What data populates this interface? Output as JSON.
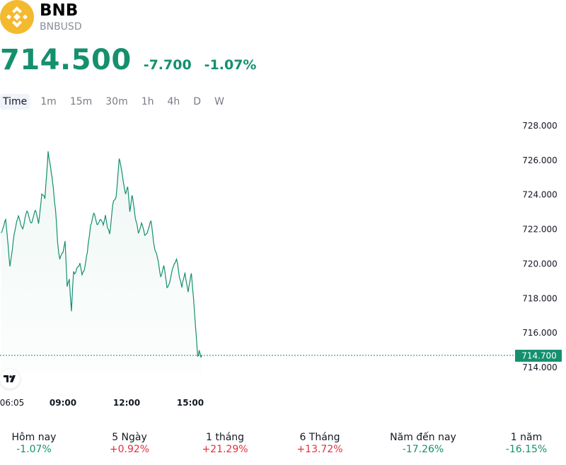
{
  "header": {
    "logo_icon": "bnb-logo-icon",
    "symbol": "BNB",
    "pair": "BNBUSD",
    "price": "714.500",
    "change": "-7.700",
    "change_pct": "-1.07%",
    "change_color": "#14906e"
  },
  "tabs": [
    "Time",
    "1m",
    "15m",
    "30m",
    "1h",
    "4h",
    "D",
    "W"
  ],
  "active_tab": "Time",
  "chart_data": {
    "type": "area",
    "y_ticks": [
      "728.000",
      "726.000",
      "724.000",
      "722.000",
      "720.000",
      "718.000",
      "716.000",
      "714.000"
    ],
    "ylim": [
      714,
      728
    ],
    "x_ticks": [
      "06:05",
      "09:00",
      "12:00",
      "15:00"
    ],
    "last_price_label": "714.700",
    "last_value": 714.7,
    "line_color": "#14906e",
    "x_hours": [
      6.08,
      6.3,
      6.5,
      6.7,
      6.9,
      7.1,
      7.3,
      7.5,
      7.7,
      7.85,
      8.0,
      8.15,
      8.3,
      8.45,
      8.55,
      8.65,
      8.75,
      8.85,
      9.0,
      9.1,
      9.2,
      9.3,
      9.4,
      9.5,
      9.6,
      9.7,
      9.8,
      9.9,
      10.0,
      10.15,
      10.3,
      10.45,
      10.6,
      10.75,
      10.9,
      11.0,
      11.1,
      11.2,
      11.35,
      11.5,
      11.65,
      11.8,
      11.95,
      12.05,
      12.15,
      12.25,
      12.35,
      12.45,
      12.55,
      12.7,
      12.85,
      13.0,
      13.15,
      13.3,
      13.45,
      13.6,
      13.75,
      13.9,
      14.05,
      14.15,
      14.25,
      14.35,
      14.45,
      14.6,
      14.75,
      14.9,
      15.05,
      15.15,
      15.25,
      15.35,
      15.42,
      15.5,
      15.55
    ],
    "values": [
      721.8,
      722.6,
      719.8,
      721.8,
      722.7,
      722.1,
      723.0,
      722.4,
      723.1,
      722.3,
      724.1,
      723.7,
      726.6,
      725.2,
      724.4,
      723.1,
      721.2,
      720.3,
      720.6,
      721.4,
      718.6,
      719.2,
      717.2,
      719.6,
      719.5,
      719.8,
      720.1,
      719.3,
      719.7,
      720.6,
      722.3,
      722.9,
      722.3,
      722.6,
      722.2,
      722.9,
      722.0,
      721.8,
      723.4,
      723.9,
      726.1,
      725.1,
      724.1,
      724.4,
      723.1,
      723.9,
      723.3,
      722.4,
      721.8,
      722.4,
      721.6,
      722.0,
      722.4,
      721.1,
      720.3,
      719.3,
      719.9,
      718.6,
      719.1,
      719.6,
      720.1,
      720.2,
      719.6,
      718.6,
      719.5,
      718.4,
      719.4,
      718.1,
      716.2,
      714.7,
      715.0,
      714.6,
      714.7
    ]
  },
  "periods": [
    {
      "label": "Hôm nay",
      "value": "-1.07%",
      "trend": "neg"
    },
    {
      "label": "5 Ngày",
      "value": "+0.92%",
      "trend": "pos"
    },
    {
      "label": "1 tháng",
      "value": "+21.29%",
      "trend": "pos"
    },
    {
      "label": "6 Tháng",
      "value": "+13.72%",
      "trend": "pos"
    },
    {
      "label": "Năm đến nay",
      "value": "-17.26%",
      "trend": "neg"
    },
    {
      "label": "1 năm",
      "value": "-16.15%",
      "trend": "neg"
    }
  ]
}
